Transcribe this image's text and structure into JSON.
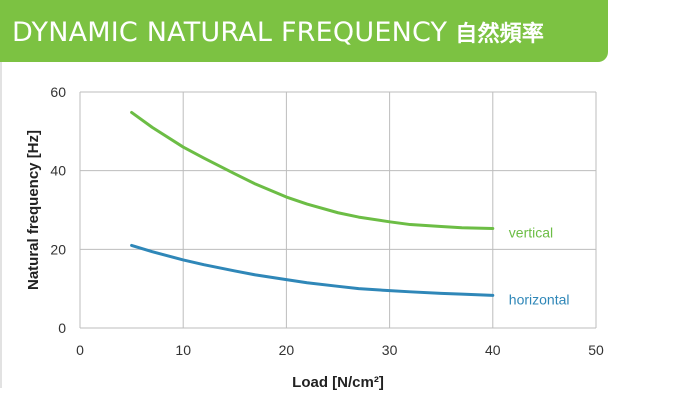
{
  "header": {
    "title": "DYNAMIC NATURAL FREQUENCY",
    "title_cn": "自然頻率"
  },
  "colors": {
    "banner": "#7cc242",
    "vertical": "#6cbd45",
    "horizontal": "#2f87b8",
    "grid": "#bdbdbd"
  },
  "chart_data": {
    "type": "line",
    "title": "DYNAMIC NATURAL FREQUENCY 自然頻率",
    "xlabel": "Load [N/cm²]",
    "ylabel": "Natural frequency [Hz]",
    "xlim": [
      0,
      50
    ],
    "ylim": [
      0,
      60
    ],
    "xticks": [
      0,
      10,
      20,
      30,
      40,
      50
    ],
    "yticks": [
      0,
      20,
      40,
      60
    ],
    "grid": true,
    "legend": "inline labels at line ends",
    "series": [
      {
        "name": "vertical",
        "x": [
          5,
          7,
          10,
          12,
          15,
          17,
          20,
          22,
          25,
          27,
          30,
          32,
          35,
          37,
          40
        ],
        "y": [
          54.8,
          51.0,
          46.0,
          43.2,
          39.2,
          36.6,
          33.3,
          31.5,
          29.3,
          28.2,
          27.0,
          26.3,
          25.8,
          25.5,
          25.3
        ]
      },
      {
        "name": "horizontal",
        "x": [
          5,
          7,
          10,
          12,
          15,
          17,
          20,
          22,
          25,
          27,
          30,
          32,
          35,
          37,
          40
        ],
        "y": [
          21.0,
          19.4,
          17.3,
          16.1,
          14.5,
          13.5,
          12.3,
          11.5,
          10.6,
          10.0,
          9.5,
          9.2,
          8.8,
          8.6,
          8.3
        ]
      }
    ]
  }
}
